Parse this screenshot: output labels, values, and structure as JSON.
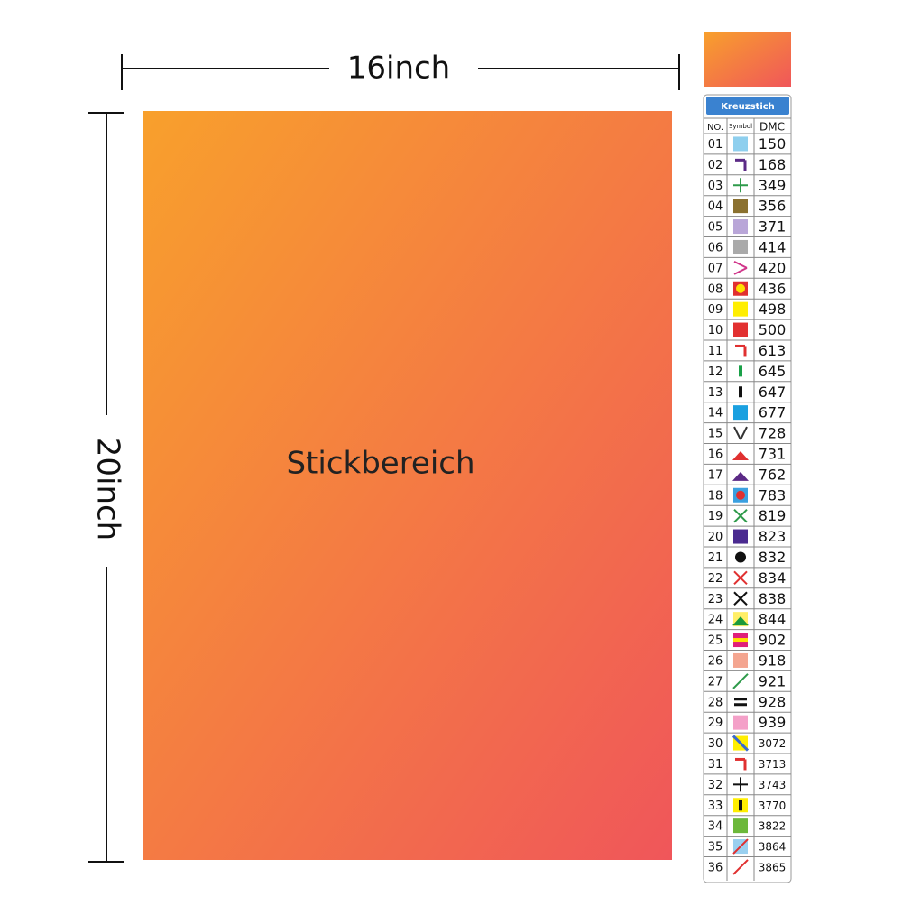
{
  "width_label": "16inch",
  "height_label": "20inch",
  "area_label": "Stickbereich",
  "legend": {
    "title": "Kreuzstich",
    "headers": [
      "NO.",
      "Symbol",
      "DMC"
    ],
    "rows": [
      [
        "01",
        "150"
      ],
      [
        "02",
        "168"
      ],
      [
        "03",
        "349"
      ],
      [
        "04",
        "356"
      ],
      [
        "05",
        "371"
      ],
      [
        "06",
        "414"
      ],
      [
        "07",
        "420"
      ],
      [
        "08",
        "436"
      ],
      [
        "09",
        "498"
      ],
      [
        "10",
        "500"
      ],
      [
        "11",
        "613"
      ],
      [
        "12",
        "645"
      ],
      [
        "13",
        "647"
      ],
      [
        "14",
        "677"
      ],
      [
        "15",
        "728"
      ],
      [
        "16",
        "731"
      ],
      [
        "17",
        "762"
      ],
      [
        "18",
        "783"
      ],
      [
        "19",
        "819"
      ],
      [
        "20",
        "823"
      ],
      [
        "21",
        "832"
      ],
      [
        "22",
        "834"
      ],
      [
        "23",
        "838"
      ],
      [
        "24",
        "844"
      ],
      [
        "25",
        "902"
      ],
      [
        "26",
        "918"
      ],
      [
        "27",
        "921"
      ],
      [
        "28",
        "928"
      ],
      [
        "29",
        "939"
      ],
      [
        "30",
        "3072"
      ],
      [
        "31",
        "3713"
      ],
      [
        "32",
        "3743"
      ],
      [
        "33",
        "3770"
      ],
      [
        "34",
        "3822"
      ],
      [
        "35",
        "3864"
      ],
      [
        "36",
        "3865"
      ]
    ]
  }
}
